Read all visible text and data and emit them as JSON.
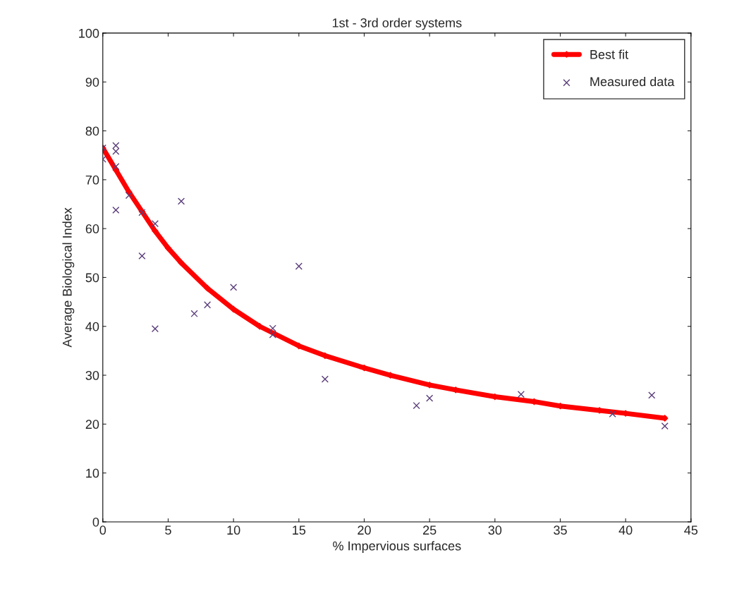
{
  "chart_data": {
    "type": "scatter",
    "title": "1st - 3rd order systems",
    "xlabel": "% Impervious surfaces",
    "ylabel": "Average Biological Index",
    "xlim": [
      0,
      45
    ],
    "xticks": [
      0,
      5,
      10,
      15,
      20,
      25,
      30,
      35,
      40,
      45
    ],
    "ylim": [
      0,
      100
    ],
    "yticks": [
      0,
      10,
      20,
      30,
      40,
      50,
      60,
      70,
      80,
      90,
      100
    ],
    "grid": false,
    "legend": "top right",
    "series": [
      {
        "name": "Best fit",
        "type": "line",
        "color": "#ff0000",
        "marker": "diamond",
        "line_style": "solid",
        "x": [
          0,
          1,
          2,
          3,
          4,
          5,
          6,
          8,
          10,
          12,
          15,
          17,
          20,
          22,
          25,
          27,
          30,
          33,
          35,
          38,
          40,
          43
        ],
        "values": [
          76.5,
          72,
          67.5,
          63.5,
          59.5,
          56,
          53,
          47.8,
          43.5,
          40,
          36,
          34,
          31.5,
          30,
          28,
          27,
          25.6,
          24.6,
          23.7,
          22.8,
          22.2,
          21.2
        ]
      },
      {
        "name": "Measured data",
        "color": "#5a3d7a",
        "marker": "cross",
        "x": [
          0,
          0,
          1,
          1,
          1,
          1,
          2,
          3,
          3,
          4,
          4,
          6,
          7,
          8,
          10,
          13,
          13,
          15,
          17,
          24,
          25,
          32,
          39,
          42,
          43
        ],
        "values": [
          76.5,
          74.2,
          77,
          75.8,
          72.7,
          63.8,
          66.8,
          63.3,
          54.4,
          61,
          39.5,
          65.6,
          42.6,
          44.4,
          48,
          39.6,
          38.3,
          52.3,
          29.2,
          23.8,
          25.3,
          26.1,
          22.1,
          25.9,
          19.6
        ]
      }
    ]
  }
}
